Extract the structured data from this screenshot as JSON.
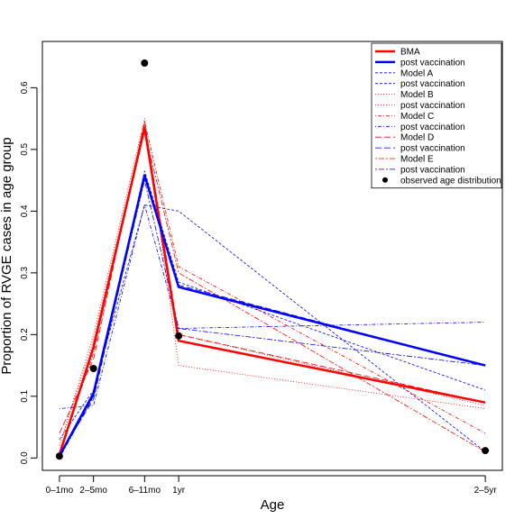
{
  "chart_data": {
    "type": "line",
    "title": "",
    "xlabel": "Age",
    "ylabel": "Proportion of RVGE cases in age group",
    "x": [
      0,
      1,
      2.5,
      3.5,
      12.5
    ],
    "x_tick_labels": [
      "0–1mo",
      "2–5mo",
      "6–11mo",
      "1yr",
      "2–5yr"
    ],
    "xlim": [
      -0.5,
      13.0
    ],
    "ylim": [
      -0.02,
      0.675
    ],
    "y_ticks": [
      0.0,
      0.1,
      0.2,
      0.3,
      0.4,
      0.5,
      0.6
    ],
    "y_tick_labels": [
      "0.0",
      "0.1",
      "0.2",
      "0.3",
      "0.4",
      "0.5",
      "0.6"
    ],
    "grid": false,
    "legend_position": "top-right",
    "series": [
      {
        "name": "BMA",
        "color": "#ff0000",
        "style": "solid",
        "width": 2.5,
        "values": [
          0.005,
          0.18,
          0.535,
          0.19,
          0.09
        ]
      },
      {
        "name": "post vaccination",
        "color": "#0000ff",
        "style": "solid",
        "width": 2.5,
        "values": [
          0.003,
          0.105,
          0.458,
          0.277,
          0.15
        ]
      },
      {
        "name": "Model A",
        "color": "#0000ff",
        "style": "dashed-short",
        "width": 0.8,
        "values": [
          0.03,
          0.11,
          0.41,
          0.4,
          0.01
        ]
      },
      {
        "name": "post vaccination",
        "color": "#0000ff",
        "style": "dashed-short",
        "width": 0.8,
        "values": [
          0.005,
          0.1,
          0.465,
          0.285,
          0.11
        ]
      },
      {
        "name": "Model B",
        "color": "#ff0000",
        "style": "dotted",
        "width": 0.8,
        "values": [
          0.02,
          0.2,
          0.55,
          0.15,
          0.08
        ]
      },
      {
        "name": "post vaccination",
        "color": "#ff0000",
        "style": "dotted",
        "width": 0.8,
        "values": [
          0.02,
          0.19,
          0.54,
          0.2,
          0.085
        ]
      },
      {
        "name": "Model C",
        "color": "#ff0000",
        "style": "dashdot",
        "width": 0.8,
        "values": [
          0.01,
          0.17,
          0.545,
          0.31,
          0.04
        ]
      },
      {
        "name": "post vaccination",
        "color": "#0000ff",
        "style": "dashdot",
        "width": 0.8,
        "values": [
          0.08,
          0.085,
          0.41,
          0.21,
          0.22
        ]
      },
      {
        "name": "Model D",
        "color": "#ff0000",
        "style": "longdash",
        "width": 0.8,
        "values": [
          0.04,
          0.16,
          0.545,
          0.2,
          0.09
        ]
      },
      {
        "name": "post vaccination",
        "color": "#0000ff",
        "style": "longdash",
        "width": 0.8,
        "values": [
          0.005,
          0.095,
          0.455,
          0.28,
          0.15
        ]
      },
      {
        "name": "Model E",
        "color": "#ff0000",
        "style": "twodash",
        "width": 0.8,
        "values": [
          0.01,
          0.18,
          0.53,
          0.3,
          0.01
        ]
      },
      {
        "name": "post vaccination",
        "color": "#0000ff",
        "style": "twodash",
        "width": 0.8,
        "values": [
          0.0,
          0.1,
          0.45,
          0.21,
          0.15
        ]
      }
    ],
    "observed": {
      "name": "observed age distribution",
      "color": "#000000",
      "values": [
        0.003,
        0.145,
        0.64,
        0.198,
        0.012
      ]
    }
  }
}
